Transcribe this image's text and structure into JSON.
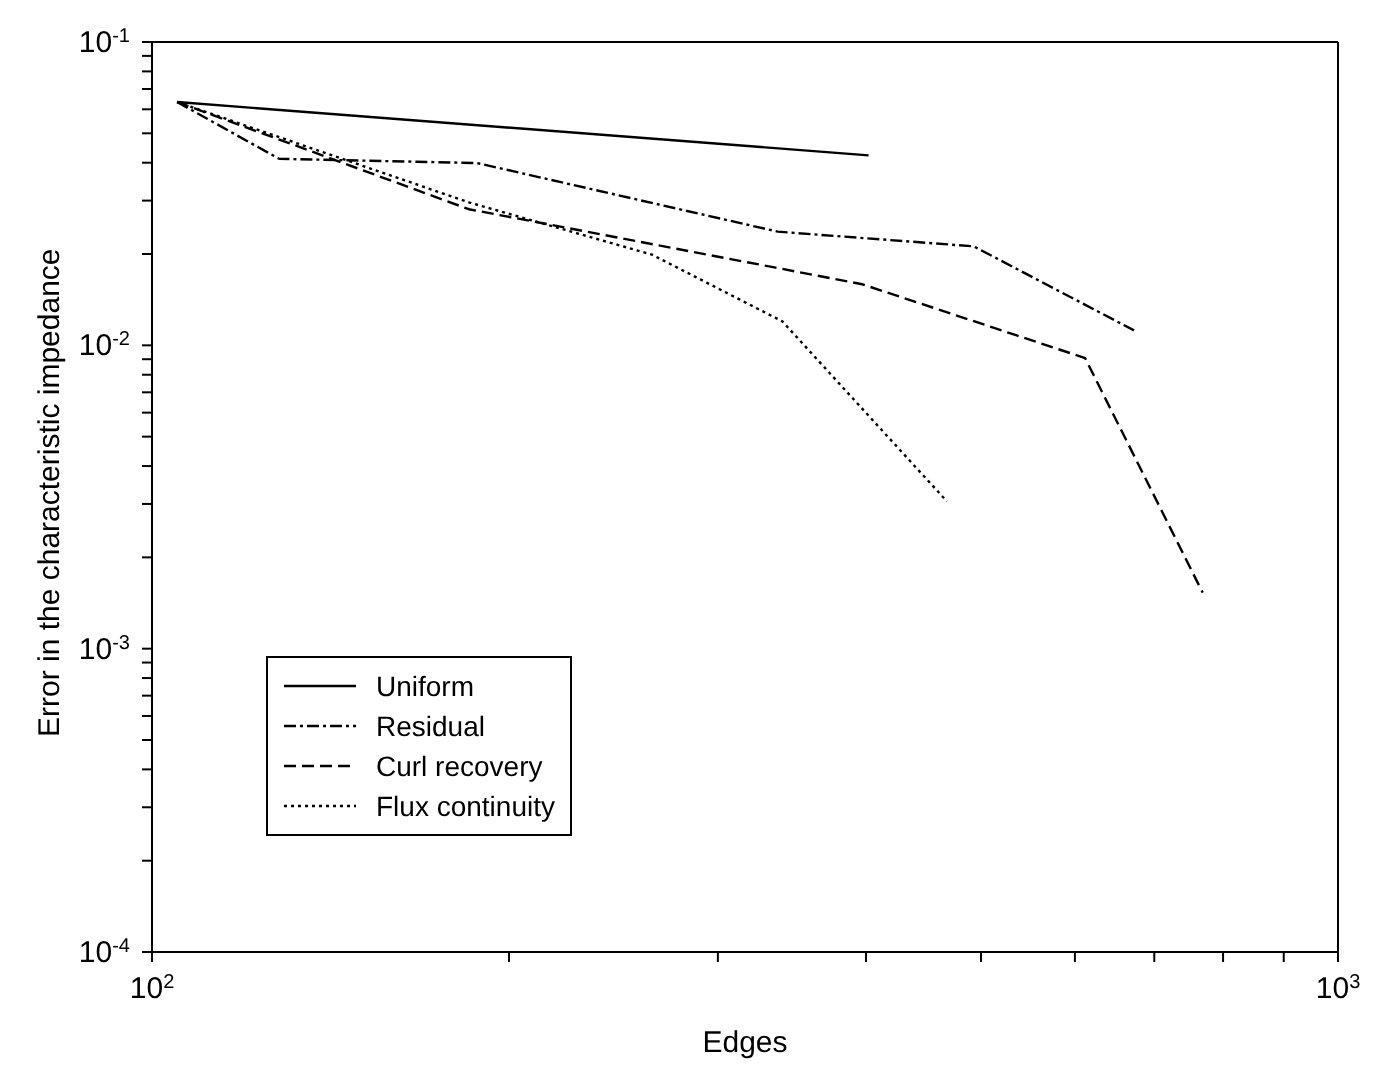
{
  "chart_data": {
    "type": "line",
    "xlabel": "Edges",
    "ylabel": "Error in the characteristic impedance",
    "log": "xy",
    "xlim": [
      100,
      1000
    ],
    "ylim": [
      0.0001,
      0.1
    ],
    "xticks": [
      {
        "value": 100,
        "label": "10$^{2}$"
      },
      {
        "value": 200,
        "label": null
      },
      {
        "value": 300,
        "label": null
      },
      {
        "value": 400,
        "label": null
      },
      {
        "value": 500,
        "label": null
      },
      {
        "value": 600,
        "label": null
      },
      {
        "value": 700,
        "label": null
      },
      {
        "value": 800,
        "label": null
      },
      {
        "value": 900,
        "label": null
      },
      {
        "value": 1000,
        "label": "10$^{3}$"
      }
    ],
    "yticks": [
      {
        "value": 0.0001,
        "label": "10$^{-4}$"
      },
      {
        "value": 0.0002,
        "label": null
      },
      {
        "value": 0.0003,
        "label": null
      },
      {
        "value": 0.0004,
        "label": null
      },
      {
        "value": 0.0005,
        "label": null
      },
      {
        "value": 0.0006,
        "label": null
      },
      {
        "value": 0.0007,
        "label": null
      },
      {
        "value": 0.0008,
        "label": null
      },
      {
        "value": 0.0009,
        "label": null
      },
      {
        "value": 0.001,
        "label": "10$^{-3}$"
      },
      {
        "value": 0.002,
        "label": null
      },
      {
        "value": 0.003,
        "label": null
      },
      {
        "value": 0.004,
        "label": null
      },
      {
        "value": 0.005,
        "label": null
      },
      {
        "value": 0.006,
        "label": null
      },
      {
        "value": 0.007,
        "label": null
      },
      {
        "value": 0.008,
        "label": null
      },
      {
        "value": 0.009,
        "label": null
      },
      {
        "value": 0.01,
        "label": "10$^{-2}$"
      },
      {
        "value": 0.02,
        "label": null
      },
      {
        "value": 0.03,
        "label": null
      },
      {
        "value": 0.04,
        "label": null
      },
      {
        "value": 0.05,
        "label": null
      },
      {
        "value": 0.06,
        "label": null
      },
      {
        "value": 0.07,
        "label": null
      },
      {
        "value": 0.08,
        "label": null
      },
      {
        "value": 0.09,
        "label": null
      },
      {
        "value": 0.1,
        "label": "10$^{-1}$"
      }
    ],
    "grid": false,
    "legend": "bottom left",
    "marker": "none",
    "series": [
      {
        "name": "Uniform",
        "color": "#000000",
        "line_style": "solid",
        "x": [
          105,
          402
        ],
        "values": [
          0.0634,
          0.0423
        ]
      },
      {
        "name": "Residual",
        "color": "#000000",
        "line_style": "dashdot",
        "x": [
          105,
          128,
          188,
          337,
          493,
          673
        ],
        "values": [
          0.0634,
          0.0412,
          0.0399,
          0.0237,
          0.0212,
          0.0112
        ]
      },
      {
        "name": "Curl recovery",
        "color": "#000000",
        "line_style": "dashed",
        "x": [
          105,
          185,
          334,
          397,
          612,
          769
        ],
        "values": [
          0.0634,
          0.0281,
          0.0181,
          0.0159,
          0.00908,
          0.00153
        ]
      },
      {
        "name": "Flux continuity",
        "color": "#000000",
        "line_style": "dotted",
        "x": [
          105,
          185,
          264,
          340,
          468
        ],
        "values": [
          0.0634,
          0.0296,
          0.0199,
          0.012,
          0.00306
        ]
      }
    ]
  }
}
